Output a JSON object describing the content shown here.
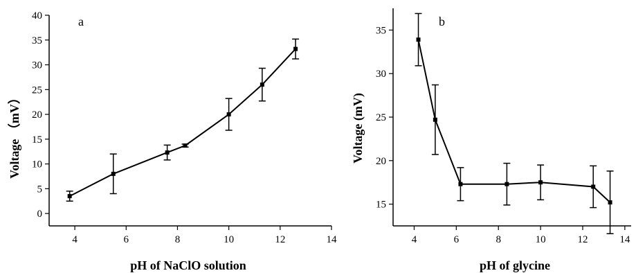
{
  "chart_data": [
    {
      "type": "line",
      "panel_label": "a",
      "xlabel": "pH of NaClO solution",
      "ylabel": "Voltage （mV）",
      "xlim": [
        3,
        14
      ],
      "ylim": [
        -2.5,
        40
      ],
      "xticks": [
        4,
        6,
        8,
        10,
        12,
        14
      ],
      "yticks": [
        0,
        5,
        10,
        15,
        20,
        25,
        30,
        35,
        40
      ],
      "grid": false,
      "series": [
        {
          "x": [
            3.8,
            5.5,
            7.6,
            8.3,
            10.0,
            11.3,
            12.6
          ],
          "y": [
            3.5,
            8.0,
            12.3,
            13.7,
            20.0,
            26.0,
            33.2
          ],
          "yerr": [
            1.0,
            4.0,
            1.5,
            0.3,
            3.2,
            3.3,
            2.0
          ]
        }
      ]
    },
    {
      "type": "line",
      "panel_label": "b",
      "xlabel": "pH of glycine",
      "ylabel": "Voltage (mV)",
      "xlim": [
        3,
        14.3
      ],
      "ylim": [
        12.5,
        37.5
      ],
      "xticks": [
        4,
        6,
        8,
        10,
        12,
        14
      ],
      "yticks": [
        15,
        20,
        25,
        30,
        35
      ],
      "grid": false,
      "series": [
        {
          "x": [
            4.2,
            5.0,
            6.2,
            8.4,
            10.0,
            12.5,
            13.3
          ],
          "y": [
            33.9,
            24.7,
            17.3,
            17.3,
            17.5,
            17.0,
            15.2
          ],
          "yerr": [
            3.0,
            4.0,
            1.9,
            2.4,
            2.0,
            2.4,
            3.6
          ]
        }
      ]
    }
  ]
}
